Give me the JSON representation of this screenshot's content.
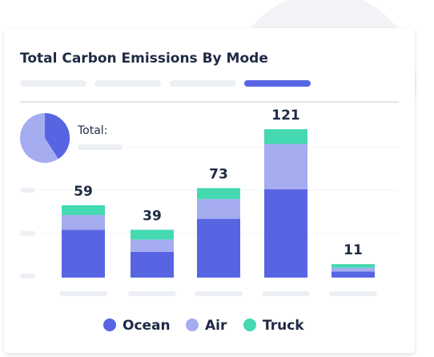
{
  "chart_data": {
    "type": "stacked-bar",
    "title": "Total Carbon Emissions By Mode",
    "total_label": "Total:",
    "categories": [
      null,
      null,
      null,
      null,
      null
    ],
    "series": [
      {
        "name": "Ocean",
        "color": "#5865e3",
        "values": [
          39,
          21,
          48,
          72,
          5
        ]
      },
      {
        "name": "Air",
        "color": "#a5acf0",
        "values": [
          12,
          10,
          16,
          37,
          3
        ]
      },
      {
        "name": "Truck",
        "color": "#44d9b1",
        "values": [
          8,
          8,
          9,
          12,
          3
        ]
      }
    ],
    "totals": [
      59,
      39,
      73,
      121,
      11
    ],
    "ylim": [
      0,
      125
    ]
  }
}
